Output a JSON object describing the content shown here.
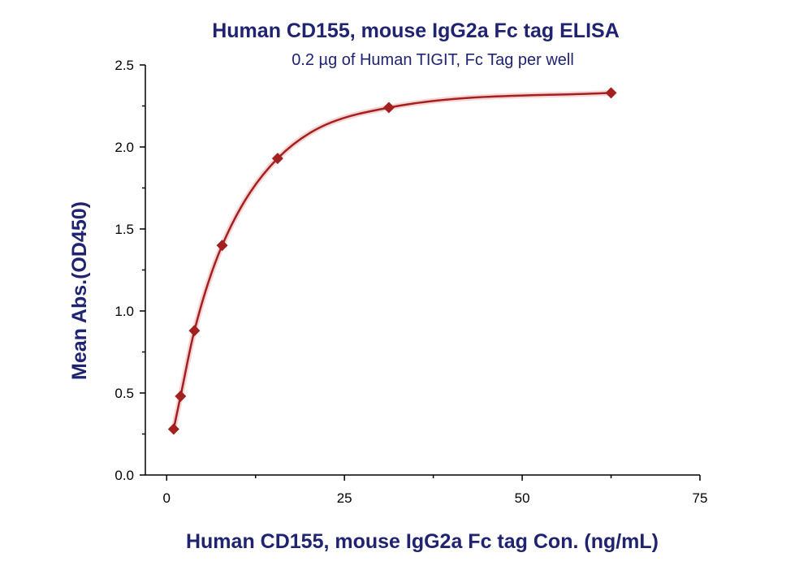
{
  "chart_data": {
    "type": "scatter",
    "title": "Human CD155, mouse IgG2a Fc tag ELISA",
    "subtitle": "0.2 µg of Human TIGIT, Fc Tag per well",
    "xlabel": "Human CD155, mouse IgG2a Fc tag Con. (ng/mL)",
    "ylabel": "Mean Abs.(OD450)",
    "xlim": [
      -3,
      75
    ],
    "ylim": [
      0,
      2.5
    ],
    "x_ticks": [
      0,
      25,
      50,
      75
    ],
    "y_ticks": [
      0.0,
      0.5,
      1.0,
      1.5,
      2.0,
      2.5
    ],
    "x_tick_labels": [
      "0",
      "25",
      "50",
      "75"
    ],
    "y_tick_labels": [
      "0.0",
      "0.5",
      "1.0",
      "1.5",
      "2.0",
      "2.5"
    ],
    "grid": false,
    "legend": "none",
    "series": [
      {
        "x": [
          0.98,
          1.95,
          3.9,
          7.8,
          15.6,
          31.25,
          62.5
        ],
        "y": [
          0.28,
          0.48,
          0.88,
          1.4,
          1.93,
          2.24,
          2.33
        ],
        "color": "#a32020",
        "marker": "diamond",
        "fit_curve": true
      }
    ]
  }
}
